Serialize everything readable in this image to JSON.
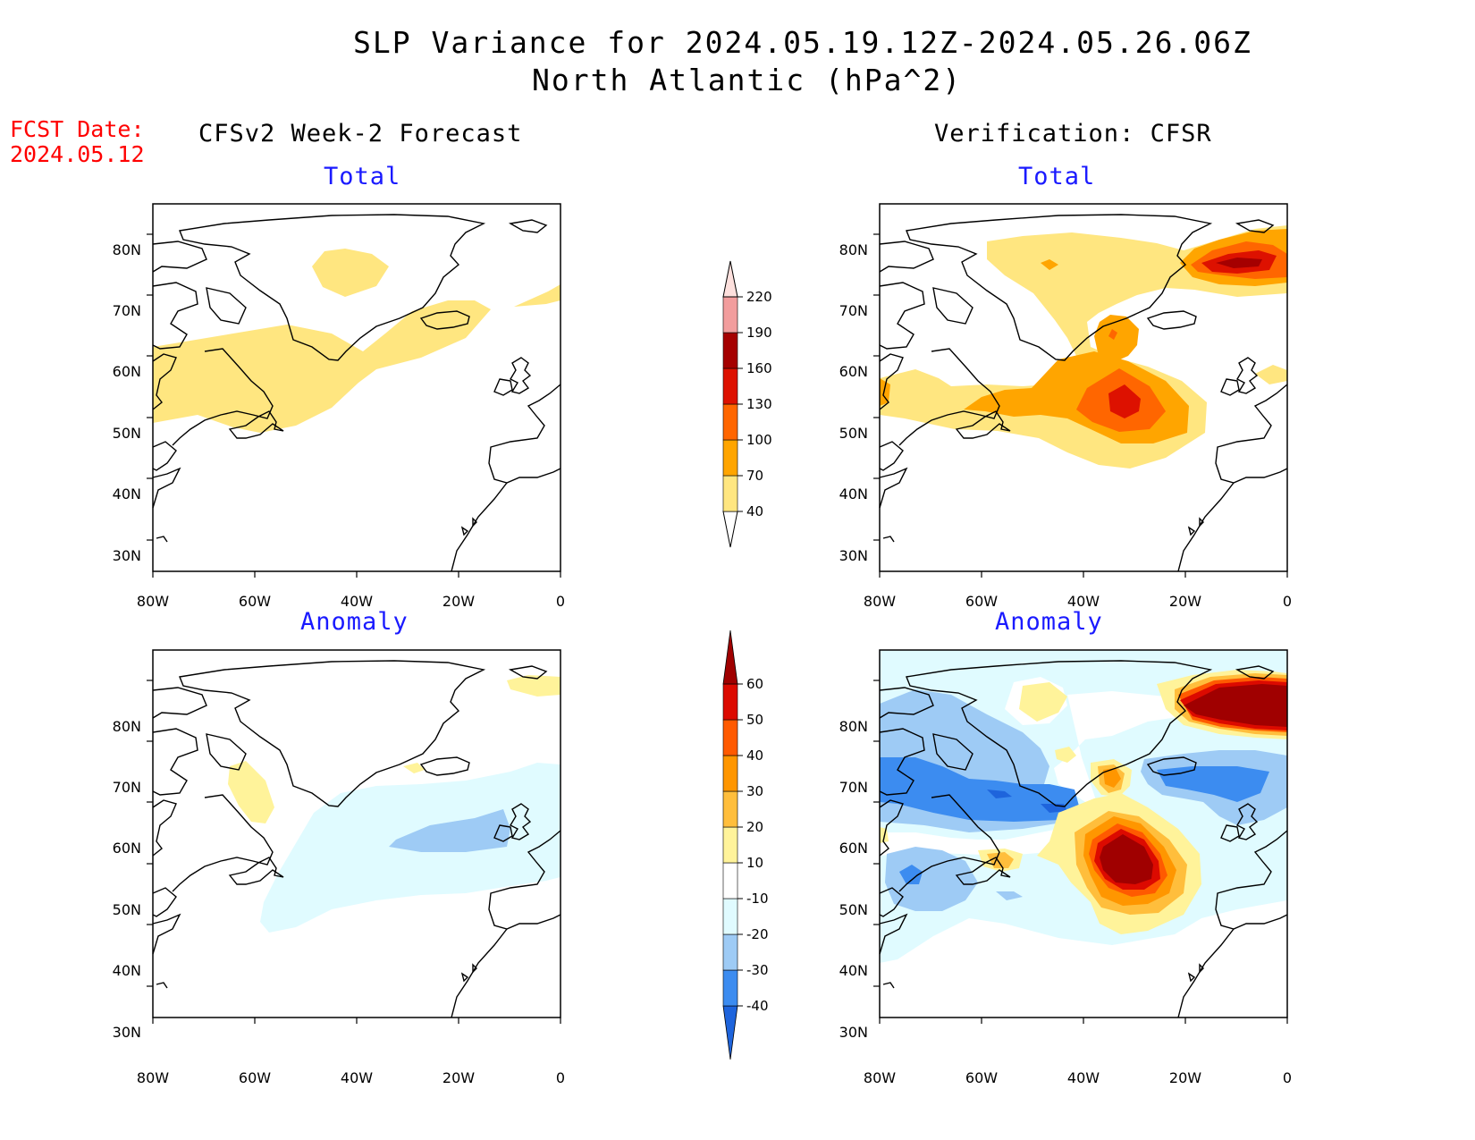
{
  "header": {
    "title_line1": "SLP Variance for 2024.05.19.12Z-2024.05.26.06Z",
    "title_line2": "North Atlantic (hPa^2)",
    "fcst_label": "FCST Date:",
    "fcst_date": "2024.05.12"
  },
  "columns": {
    "left": "CFSv2 Week-2 Forecast",
    "right": "Verification: CFSR"
  },
  "panels": [
    {
      "id": "fcst-total",
      "title": "Total"
    },
    {
      "id": "cfsr-total",
      "title": "Total"
    },
    {
      "id": "fcst-anomaly",
      "title": "Anomaly"
    },
    {
      "id": "cfsr-anomaly",
      "title": "Anomaly"
    }
  ],
  "map": {
    "lon_labels": [
      "80W",
      "60W",
      "40W",
      "20W",
      "0"
    ],
    "lat_labels": [
      "80N",
      "70N",
      "60N",
      "50N",
      "40N",
      "30N"
    ]
  },
  "colorbars": {
    "total": {
      "levels": [
        "40",
        "70",
        "100",
        "130",
        "160",
        "190",
        "220"
      ],
      "colors": [
        "#ffe680",
        "#ffa500",
        "#ff6600",
        "#dd1100",
        "#a50000",
        "#f29d9d",
        "#fde0dd"
      ]
    },
    "anomaly": {
      "levels": [
        "-40",
        "-30",
        "-20",
        "-10",
        "10",
        "20",
        "30",
        "40",
        "50",
        "60"
      ],
      "colors": [
        "#1e64dc",
        "#3c8cf0",
        "#9ecbf5",
        "#e0fbff",
        "#ffffff",
        "#fff39a",
        "#ffbe3c",
        "#ff9600",
        "#ff5a00",
        "#dc0a00",
        "#a00000"
      ]
    }
  },
  "colors": {
    "title_blue": "#1a1aff",
    "fcst_red": "#ff0000"
  }
}
